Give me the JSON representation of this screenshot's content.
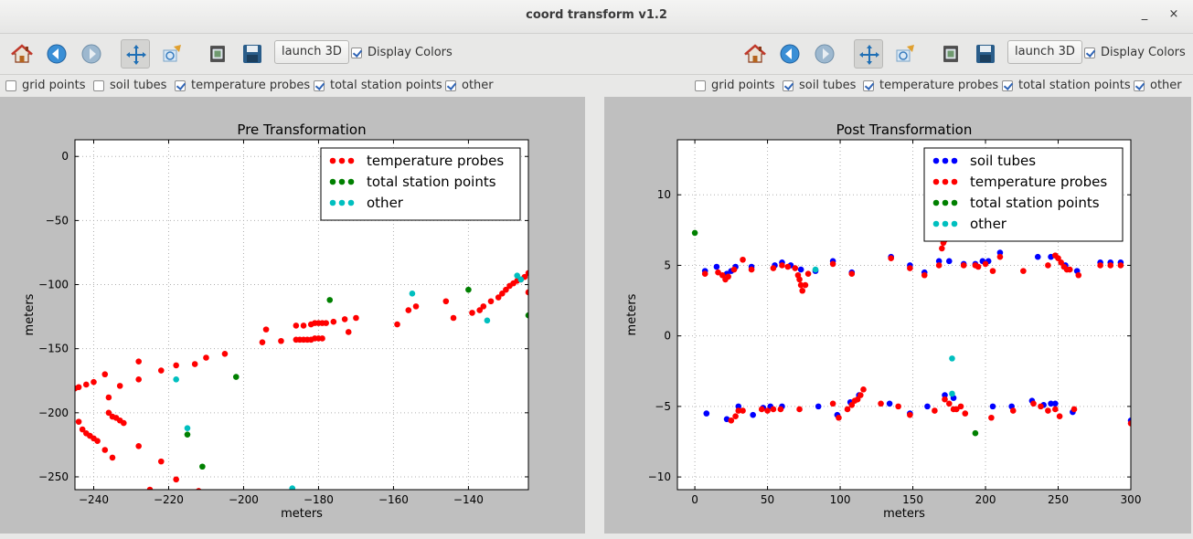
{
  "window": {
    "title": "coord transform v1.2",
    "minimize_glyph": "_",
    "close_glyph": "×"
  },
  "toolbars": [
    {
      "launch_label": "launch 3D",
      "display_colors_label": "Display Colors",
      "display_colors_checked": true,
      "icons": [
        "home-icon",
        "back-icon",
        "forward-icon",
        "pan-icon",
        "zoom-edit-icon",
        "configure-icon",
        "save-icon"
      ]
    },
    {
      "launch_label": "launch 3D",
      "display_colors_label": "Display Colors",
      "display_colors_checked": true,
      "icons": [
        "home-icon",
        "back-icon",
        "forward-icon",
        "pan-icon",
        "zoom-edit-icon",
        "configure-icon",
        "save-icon"
      ]
    }
  ],
  "filters": [
    {
      "items": [
        {
          "label": "grid points",
          "checked": false
        },
        {
          "label": "soil tubes",
          "checked": false
        },
        {
          "label": "temperature probes",
          "checked": true
        },
        {
          "label": "total station points",
          "checked": true
        },
        {
          "label": "other",
          "checked": true
        }
      ]
    },
    {
      "items": [
        {
          "label": "grid points",
          "checked": false
        },
        {
          "label": "soil tubes",
          "checked": true
        },
        {
          "label": "temperature probes",
          "checked": true
        },
        {
          "label": "total station points",
          "checked": true
        },
        {
          "label": "other",
          "checked": true
        }
      ]
    }
  ],
  "colors": {
    "soil_tubes": "#0000ff",
    "temperature_probes": "#ff0000",
    "total_station_points": "#008000",
    "other": "#00bfbf"
  },
  "chart_data": [
    {
      "type": "scatter",
      "title": "Pre Transformation",
      "xlabel": "meters",
      "ylabel": "meters",
      "xlim": [
        -245,
        -124
      ],
      "ylim": [
        -260,
        13
      ],
      "xticks": [
        -240,
        -220,
        -200,
        -180,
        -160,
        -140
      ],
      "yticks": [
        0,
        -50,
        -100,
        -150,
        -200,
        -250
      ],
      "grid": true,
      "legend_position": "top-right",
      "series": [
        {
          "name": "temperature probes",
          "color": "#ff0000",
          "points": [
            [
              -245,
              -181
            ],
            [
              -244,
              -180
            ],
            [
              -242,
              -178
            ],
            [
              -240,
              -176
            ],
            [
              -237,
              -170
            ],
            [
              -233,
              -179
            ],
            [
              -228,
              -160
            ],
            [
              -228,
              -174
            ],
            [
              -222,
              -167
            ],
            [
              -218,
              -163
            ],
            [
              -213,
              -162
            ],
            [
              -210,
              -157
            ],
            [
              -205,
              -154
            ],
            [
              -236,
              -188
            ],
            [
              -236,
              -200
            ],
            [
              -235,
              -203
            ],
            [
              -234,
              -204
            ],
            [
              -233,
              -206
            ],
            [
              -232,
              -208
            ],
            [
              -244,
              -207
            ],
            [
              -243,
              -213
            ],
            [
              -242,
              -216
            ],
            [
              -241,
              -218
            ],
            [
              -240,
              -220
            ],
            [
              -239,
              -222
            ],
            [
              -237,
              -229
            ],
            [
              -235,
              -235
            ],
            [
              -228,
              -226
            ],
            [
              -222,
              -238
            ],
            [
              -218,
              -252
            ],
            [
              -212,
              -261
            ],
            [
              -225,
              -260
            ],
            [
              -195,
              -145
            ],
            [
              -194,
              -135
            ],
            [
              -190,
              -144
            ],
            [
              -186,
              -143
            ],
            [
              -185,
              -143
            ],
            [
              -184,
              -143
            ],
            [
              -183,
              -143
            ],
            [
              -182,
              -143
            ],
            [
              -181,
              -142
            ],
            [
              -180,
              -142
            ],
            [
              -179,
              -142
            ],
            [
              -186,
              -132
            ],
            [
              -184,
              -132
            ],
            [
              -182,
              -131
            ],
            [
              -181,
              -130
            ],
            [
              -180,
              -130
            ],
            [
              -179,
              -130
            ],
            [
              -178,
              -130
            ],
            [
              -176,
              -129
            ],
            [
              -173,
              -127
            ],
            [
              -172,
              -137
            ],
            [
              -170,
              -126
            ],
            [
              -159,
              -131
            ],
            [
              -156,
              -120
            ],
            [
              -154,
              -117
            ],
            [
              -146,
              -113
            ],
            [
              -144,
              -126
            ],
            [
              -139,
              -122
            ],
            [
              -137,
              -120
            ],
            [
              -136,
              -117
            ],
            [
              -134,
              -113
            ],
            [
              -132,
              -110
            ],
            [
              -131,
              -107
            ],
            [
              -130,
              -104
            ],
            [
              -129,
              -101
            ],
            [
              -128,
              -99
            ],
            [
              -127,
              -97
            ],
            [
              -126,
              -96
            ],
            [
              -125,
              -94
            ],
            [
              -124,
              -91
            ],
            [
              -124,
              -106
            ]
          ]
        },
        {
          "name": "total station points",
          "color": "#008000",
          "points": [
            [
              -202,
              -172
            ],
            [
              -177,
              -112
            ],
            [
              -140,
              -104
            ],
            [
              -124,
              -124
            ],
            [
              -215,
              -217
            ],
            [
              -211,
              -242
            ]
          ]
        },
        {
          "name": "other",
          "color": "#00bfbf",
          "points": [
            [
              -218,
              -174
            ],
            [
              -215,
              -212
            ],
            [
              -187,
              -259
            ],
            [
              -155,
              -107
            ],
            [
              -135,
              -128
            ],
            [
              -127,
              -93
            ],
            [
              -126,
              -96
            ]
          ]
        }
      ]
    },
    {
      "type": "scatter",
      "title": "Post Transformation",
      "xlabel": "meters",
      "ylabel": "meters",
      "xlim": [
        -12,
        300
      ],
      "ylim": [
        -10.9,
        13.9
      ],
      "xticks": [
        0,
        50,
        100,
        150,
        200,
        250,
        300
      ],
      "yticks": [
        10,
        5,
        0,
        -5,
        -10
      ],
      "grid": true,
      "legend_position": "top-right",
      "series": [
        {
          "name": "soil tubes",
          "color": "#0000ff",
          "points": [
            [
              7,
              4.6
            ],
            [
              15,
              4.9
            ],
            [
              22,
              4.4
            ],
            [
              25,
              4.6
            ],
            [
              28,
              4.9
            ],
            [
              39,
              4.9
            ],
            [
              55,
              5.0
            ],
            [
              60,
              5.2
            ],
            [
              66,
              5.0
            ],
            [
              73,
              4.7
            ],
            [
              83,
              4.6
            ],
            [
              95,
              5.3
            ],
            [
              108,
              4.5
            ],
            [
              135,
              5.6
            ],
            [
              148,
              5.0
            ],
            [
              158,
              4.5
            ],
            [
              168,
              5.3
            ],
            [
              175,
              5.3
            ],
            [
              185,
              5.1
            ],
            [
              193,
              5.1
            ],
            [
              198,
              5.3
            ],
            [
              202,
              5.3
            ],
            [
              210,
              5.9
            ],
            [
              236,
              5.6
            ],
            [
              245,
              5.6
            ],
            [
              255,
              5.0
            ],
            [
              263,
              4.6
            ],
            [
              279,
              5.2
            ],
            [
              286,
              5.2
            ],
            [
              293,
              5.2
            ],
            [
              8,
              -5.5
            ],
            [
              22,
              -5.9
            ],
            [
              30,
              -5.0
            ],
            [
              40,
              -5.6
            ],
            [
              47,
              -5.1
            ],
            [
              52,
              -5.0
            ],
            [
              60,
              -5.0
            ],
            [
              85,
              -5.0
            ],
            [
              98,
              -5.6
            ],
            [
              107,
              -4.7
            ],
            [
              113,
              -4.2
            ],
            [
              134,
              -4.8
            ],
            [
              148,
              -5.5
            ],
            [
              160,
              -5.0
            ],
            [
              172,
              -4.2
            ],
            [
              178,
              -4.4
            ],
            [
              205,
              -5.0
            ],
            [
              218,
              -5.0
            ],
            [
              232,
              -4.6
            ],
            [
              240,
              -4.9
            ],
            [
              245,
              -4.8
            ],
            [
              248,
              -4.8
            ],
            [
              260,
              -5.4
            ],
            [
              300,
              -6.0
            ]
          ]
        },
        {
          "name": "temperature probes",
          "color": "#ff0000",
          "points": [
            [
              7,
              4.4
            ],
            [
              16,
              4.5
            ],
            [
              19,
              4.3
            ],
            [
              21,
              4.0
            ],
            [
              23,
              4.2
            ],
            [
              27,
              4.7
            ],
            [
              33,
              5.4
            ],
            [
              39,
              4.7
            ],
            [
              54,
              4.8
            ],
            [
              60,
              5.0
            ],
            [
              64,
              4.9
            ],
            [
              69,
              4.8
            ],
            [
              71,
              4.3
            ],
            [
              72,
              4.0
            ],
            [
              73,
              3.6
            ],
            [
              74,
              3.2
            ],
            [
              76,
              3.6
            ],
            [
              78,
              4.4
            ],
            [
              95,
              5.1
            ],
            [
              108,
              4.4
            ],
            [
              135,
              5.5
            ],
            [
              148,
              4.8
            ],
            [
              158,
              4.3
            ],
            [
              168,
              5.0
            ],
            [
              170,
              6.2
            ],
            [
              171,
              6.6
            ],
            [
              172,
              6.8
            ],
            [
              174,
              7.1
            ],
            [
              176,
              7.4
            ],
            [
              178,
              7.6
            ],
            [
              185,
              5.0
            ],
            [
              193,
              5.0
            ],
            [
              195,
              4.9
            ],
            [
              200,
              5.1
            ],
            [
              205,
              4.6
            ],
            [
              210,
              5.6
            ],
            [
              226,
              4.6
            ],
            [
              243,
              5.0
            ],
            [
              248,
              5.7
            ],
            [
              250,
              5.5
            ],
            [
              252,
              5.2
            ],
            [
              254,
              4.9
            ],
            [
              256,
              4.7
            ],
            [
              258,
              4.7
            ],
            [
              264,
              4.3
            ],
            [
              279,
              5.0
            ],
            [
              286,
              5.0
            ],
            [
              293,
              5.0
            ],
            [
              25,
              -6.0
            ],
            [
              28,
              -5.7
            ],
            [
              30,
              -5.3
            ],
            [
              33,
              -5.3
            ],
            [
              46,
              -5.2
            ],
            [
              50,
              -5.3
            ],
            [
              54,
              -5.2
            ],
            [
              59,
              -5.2
            ],
            [
              72,
              -5.2
            ],
            [
              95,
              -4.8
            ],
            [
              99,
              -5.8
            ],
            [
              105,
              -5.2
            ],
            [
              108,
              -4.9
            ],
            [
              110,
              -4.6
            ],
            [
              112,
              -4.5
            ],
            [
              114,
              -4.2
            ],
            [
              116,
              -3.8
            ],
            [
              128,
              -4.8
            ],
            [
              140,
              -5.0
            ],
            [
              148,
              -5.6
            ],
            [
              165,
              -5.3
            ],
            [
              172,
              -4.5
            ],
            [
              175,
              -4.8
            ],
            [
              178,
              -5.2
            ],
            [
              180,
              -5.2
            ],
            [
              183,
              -5.0
            ],
            [
              186,
              -5.5
            ],
            [
              204,
              -5.8
            ],
            [
              219,
              -5.3
            ],
            [
              233,
              -4.8
            ],
            [
              238,
              -5.0
            ],
            [
              243,
              -5.3
            ],
            [
              248,
              -5.2
            ],
            [
              251,
              -5.7
            ],
            [
              261,
              -5.2
            ],
            [
              300,
              -6.2
            ]
          ]
        },
        {
          "name": "total station points",
          "color": "#008000",
          "points": [
            [
              0,
              7.3
            ],
            [
              193,
              -6.9
            ]
          ]
        },
        {
          "name": "other",
          "color": "#00bfbf",
          "points": [
            [
              83,
              4.7
            ],
            [
              177,
              -1.6
            ],
            [
              177,
              -4.1
            ]
          ]
        }
      ]
    }
  ]
}
